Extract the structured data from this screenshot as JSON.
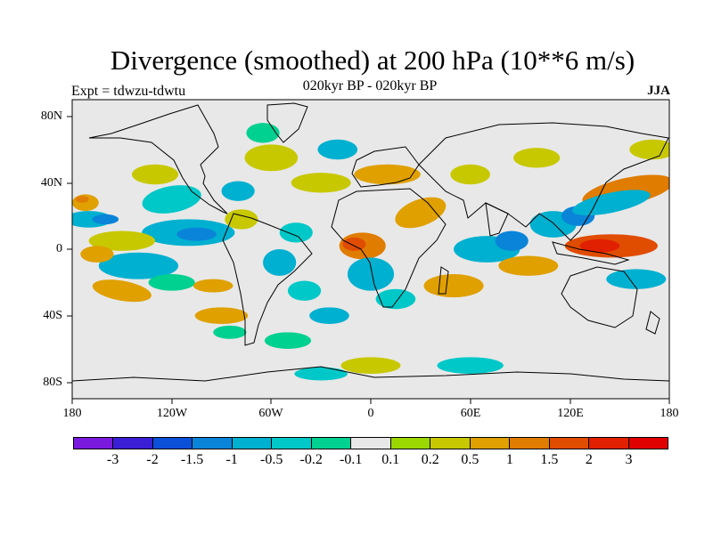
{
  "figure": {
    "title": "Divergence (smoothed) at 200 hPa (10**6 m/s)",
    "subtitle": "020kyr BP - 020kyr BP",
    "experiment": "Expt = tdwzu-tdwtu",
    "season": "JJA"
  },
  "map": {
    "projection": "cylindrical equidistant",
    "lon_range": [
      -180,
      180
    ],
    "lat_range": [
      -90,
      90
    ],
    "lat_labels": [
      "80N",
      "40N",
      "0",
      "40S",
      "80S"
    ],
    "lon_labels": [
      "180",
      "120W",
      "60W",
      "0",
      "60E",
      "120E",
      "180"
    ],
    "background_color": "#e8e8e8",
    "field_features": [
      {
        "lon": -170,
        "lat": 18,
        "rx": 14,
        "ry": 5,
        "color": "#00b0d0",
        "rot": 0
      },
      {
        "lon": -160,
        "lat": 18,
        "rx": 8,
        "ry": 3,
        "color": "#0a84d8",
        "rot": 0
      },
      {
        "lon": -172,
        "lat": 28,
        "rx": 8,
        "ry": 5,
        "color": "#dfa000",
        "rot": 0
      },
      {
        "lon": -174,
        "lat": 30,
        "rx": 4,
        "ry": 2,
        "color": "#e07c00",
        "rot": 0
      },
      {
        "lon": -130,
        "lat": 45,
        "rx": 14,
        "ry": 6,
        "color": "#c8c800",
        "rot": 0
      },
      {
        "lon": -120,
        "lat": 30,
        "rx": 18,
        "ry": 8,
        "color": "#00c8c8",
        "rot": -10
      },
      {
        "lon": -110,
        "lat": 10,
        "rx": 28,
        "ry": 8,
        "color": "#00b0d0",
        "rot": 0
      },
      {
        "lon": -105,
        "lat": 9,
        "rx": 12,
        "ry": 4,
        "color": "#0a84d8",
        "rot": 0
      },
      {
        "lon": -150,
        "lat": 5,
        "rx": 20,
        "ry": 6,
        "color": "#c8c800",
        "rot": 0
      },
      {
        "lon": -140,
        "lat": -10,
        "rx": 24,
        "ry": 8,
        "color": "#00b0d0",
        "rot": 0
      },
      {
        "lon": -165,
        "lat": -3,
        "rx": 10,
        "ry": 5,
        "color": "#dfa000",
        "rot": 0
      },
      {
        "lon": -150,
        "lat": -25,
        "rx": 18,
        "ry": 6,
        "color": "#dfa000",
        "rot": 10
      },
      {
        "lon": -120,
        "lat": -20,
        "rx": 14,
        "ry": 5,
        "color": "#00d090",
        "rot": 0
      },
      {
        "lon": -95,
        "lat": -22,
        "rx": 12,
        "ry": 4,
        "color": "#dfa000",
        "rot": 0
      },
      {
        "lon": -90,
        "lat": -40,
        "rx": 16,
        "ry": 5,
        "color": "#dfa000",
        "rot": 0
      },
      {
        "lon": -85,
        "lat": -50,
        "rx": 10,
        "ry": 4,
        "color": "#00d090",
        "rot": 0
      },
      {
        "lon": -78,
        "lat": 18,
        "rx": 10,
        "ry": 6,
        "color": "#c8c800",
        "rot": 0
      },
      {
        "lon": -80,
        "lat": 35,
        "rx": 10,
        "ry": 6,
        "color": "#00b0d0",
        "rot": 0
      },
      {
        "lon": -60,
        "lat": 55,
        "rx": 16,
        "ry": 8,
        "color": "#c8c800",
        "rot": 0
      },
      {
        "lon": -65,
        "lat": 70,
        "rx": 10,
        "ry": 6,
        "color": "#00d090",
        "rot": 0
      },
      {
        "lon": -45,
        "lat": 10,
        "rx": 10,
        "ry": 6,
        "color": "#00c8c8",
        "rot": 0
      },
      {
        "lon": -55,
        "lat": -8,
        "rx": 10,
        "ry": 8,
        "color": "#00b0d0",
        "rot": 0
      },
      {
        "lon": -40,
        "lat": -25,
        "rx": 10,
        "ry": 6,
        "color": "#00c8c8",
        "rot": 0
      },
      {
        "lon": -25,
        "lat": -40,
        "rx": 12,
        "ry": 5,
        "color": "#00b0d0",
        "rot": 0
      },
      {
        "lon": -50,
        "lat": -55,
        "rx": 14,
        "ry": 5,
        "color": "#00d090",
        "rot": 0
      },
      {
        "lon": -30,
        "lat": 40,
        "rx": 18,
        "ry": 6,
        "color": "#c8c800",
        "rot": 0
      },
      {
        "lon": -20,
        "lat": 60,
        "rx": 12,
        "ry": 6,
        "color": "#00b0d0",
        "rot": 0
      },
      {
        "lon": 10,
        "lat": 45,
        "rx": 20,
        "ry": 6,
        "color": "#dfa000",
        "rot": 0
      },
      {
        "lon": 30,
        "lat": 22,
        "rx": 16,
        "ry": 8,
        "color": "#dfa000",
        "rot": -20
      },
      {
        "lon": -5,
        "lat": 2,
        "rx": 14,
        "ry": 8,
        "color": "#e07c00",
        "rot": 0
      },
      {
        "lon": -10,
        "lat": 3,
        "rx": 7,
        "ry": 4,
        "color": "#e04c00",
        "rot": 0
      },
      {
        "lon": 0,
        "lat": -15,
        "rx": 14,
        "ry": 10,
        "color": "#00b0d0",
        "rot": 0
      },
      {
        "lon": 15,
        "lat": -30,
        "rx": 12,
        "ry": 6,
        "color": "#00c8c8",
        "rot": 0
      },
      {
        "lon": 50,
        "lat": -22,
        "rx": 18,
        "ry": 7,
        "color": "#dfa000",
        "rot": 0
      },
      {
        "lon": 60,
        "lat": 45,
        "rx": 12,
        "ry": 6,
        "color": "#c8c800",
        "rot": 0
      },
      {
        "lon": 70,
        "lat": 0,
        "rx": 20,
        "ry": 8,
        "color": "#00b0d0",
        "rot": 0
      },
      {
        "lon": 85,
        "lat": 5,
        "rx": 10,
        "ry": 6,
        "color": "#0a84d8",
        "rot": 0
      },
      {
        "lon": 95,
        "lat": -10,
        "rx": 18,
        "ry": 6,
        "color": "#dfa000",
        "rot": 0
      },
      {
        "lon": 110,
        "lat": 15,
        "rx": 14,
        "ry": 8,
        "color": "#00b0d0",
        "rot": 0
      },
      {
        "lon": 125,
        "lat": 20,
        "rx": 10,
        "ry": 6,
        "color": "#0a84d8",
        "rot": 0
      },
      {
        "lon": 155,
        "lat": 35,
        "rx": 28,
        "ry": 8,
        "color": "#e07c00",
        "rot": -12
      },
      {
        "lon": 145,
        "lat": 28,
        "rx": 24,
        "ry": 6,
        "color": "#00b0d0",
        "rot": -12
      },
      {
        "lon": 145,
        "lat": 2,
        "rx": 28,
        "ry": 7,
        "color": "#e04c00",
        "rot": 0
      },
      {
        "lon": 138,
        "lat": 2,
        "rx": 12,
        "ry": 4,
        "color": "#e02000",
        "rot": 0
      },
      {
        "lon": 160,
        "lat": -18,
        "rx": 18,
        "ry": 6,
        "color": "#00b0d0",
        "rot": 0
      },
      {
        "lon": 170,
        "lat": 60,
        "rx": 14,
        "ry": 6,
        "color": "#c8c800",
        "rot": 0
      },
      {
        "lon": 100,
        "lat": 55,
        "rx": 14,
        "ry": 6,
        "color": "#c8c800",
        "rot": 0
      },
      {
        "lon": 0,
        "lat": -70,
        "rx": 18,
        "ry": 5,
        "color": "#c8c800",
        "rot": 0
      },
      {
        "lon": -30,
        "lat": -75,
        "rx": 16,
        "ry": 4,
        "color": "#00c8c8",
        "rot": 0
      },
      {
        "lon": 60,
        "lat": -70,
        "rx": 20,
        "ry": 5,
        "color": "#00c8c8",
        "rot": 0
      }
    ]
  },
  "colorbar": {
    "colors": [
      "#7b1adf",
      "#3a1fd6",
      "#0a50d8",
      "#0a84d8",
      "#00b0d0",
      "#00c8c8",
      "#00d090",
      "#e8e8e8",
      "#9ad800",
      "#c8c800",
      "#dfa000",
      "#e07c00",
      "#e04c00",
      "#e02000",
      "#e00000"
    ],
    "labels": [
      "-3",
      "-2",
      "-1.5",
      "-1",
      "-0.5",
      "-0.2",
      "-0.1",
      "0.1",
      "0.2",
      "0.5",
      "1",
      "1.5",
      "2",
      "3"
    ]
  }
}
